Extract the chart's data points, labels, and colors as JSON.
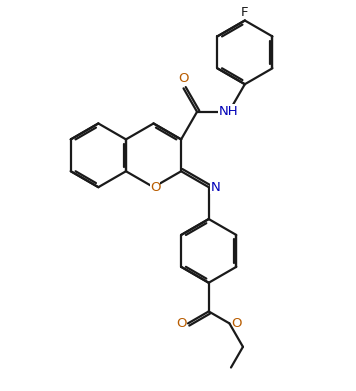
{
  "background_color": "#ffffff",
  "line_color": "#1a1a1a",
  "atom_colors": {
    "O": "#b85c00",
    "N": "#0000b8",
    "F": "#1a1a1a",
    "C": "#1a1a1a"
  },
  "line_width": 1.6,
  "figsize": [
    3.56,
    3.91
  ],
  "dpi": 100,
  "BL": 1.0
}
